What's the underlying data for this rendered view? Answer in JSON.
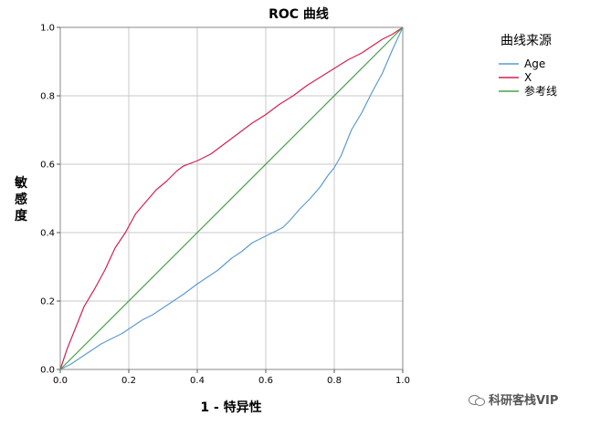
{
  "chart_data": {
    "type": "line",
    "title": "ROC 曲线",
    "xlabel": "1 - 特异性",
    "ylabel": "敏感度",
    "xlim": [
      0,
      1
    ],
    "ylim": [
      0,
      1
    ],
    "x_ticks": [
      "0.0",
      "0.2",
      "0.4",
      "0.6",
      "0.8",
      "1.0"
    ],
    "y_ticks": [
      "0.0",
      "0.2",
      "0.4",
      "0.6",
      "0.8",
      "1.0"
    ],
    "grid": true,
    "legend_title": "曲线来源",
    "legend_position": "right",
    "series": [
      {
        "name": "Age",
        "color": "#5b9bd5",
        "x": [
          0,
          0.03,
          0.06,
          0.09,
          0.12,
          0.15,
          0.18,
          0.21,
          0.24,
          0.27,
          0.3,
          0.33,
          0.36,
          0.4,
          0.43,
          0.46,
          0.5,
          0.53,
          0.56,
          0.6,
          0.62,
          0.65,
          0.67,
          0.7,
          0.73,
          0.76,
          0.78,
          0.8,
          0.82,
          0.85,
          0.88,
          0.91,
          0.94,
          0.97,
          1.0
        ],
        "y": [
          0,
          0.015,
          0.035,
          0.055,
          0.075,
          0.09,
          0.105,
          0.125,
          0.145,
          0.16,
          0.18,
          0.2,
          0.22,
          0.25,
          0.27,
          0.29,
          0.325,
          0.345,
          0.37,
          0.39,
          0.4,
          0.415,
          0.435,
          0.47,
          0.5,
          0.535,
          0.565,
          0.59,
          0.625,
          0.7,
          0.75,
          0.81,
          0.865,
          0.935,
          1.0
        ]
      },
      {
        "name": "X",
        "color": "#d6204f",
        "x": [
          0,
          0.02,
          0.04,
          0.07,
          0.1,
          0.13,
          0.16,
          0.19,
          0.22,
          0.25,
          0.28,
          0.31,
          0.34,
          0.36,
          0.4,
          0.44,
          0.48,
          0.52,
          0.56,
          0.6,
          0.64,
          0.68,
          0.72,
          0.76,
          0.8,
          0.84,
          0.88,
          0.91,
          0.94,
          0.97,
          1.0
        ],
        "y": [
          0,
          0.06,
          0.11,
          0.185,
          0.235,
          0.29,
          0.355,
          0.4,
          0.455,
          0.49,
          0.525,
          0.55,
          0.58,
          0.595,
          0.61,
          0.63,
          0.66,
          0.69,
          0.72,
          0.745,
          0.775,
          0.8,
          0.83,
          0.855,
          0.88,
          0.905,
          0.925,
          0.945,
          0.965,
          0.98,
          1.0
        ]
      },
      {
        "name": "参考线",
        "color": "#4aa04a",
        "x": [
          0,
          1
        ],
        "y": [
          0,
          1
        ]
      }
    ]
  },
  "watermark": "科研客栈VIP"
}
